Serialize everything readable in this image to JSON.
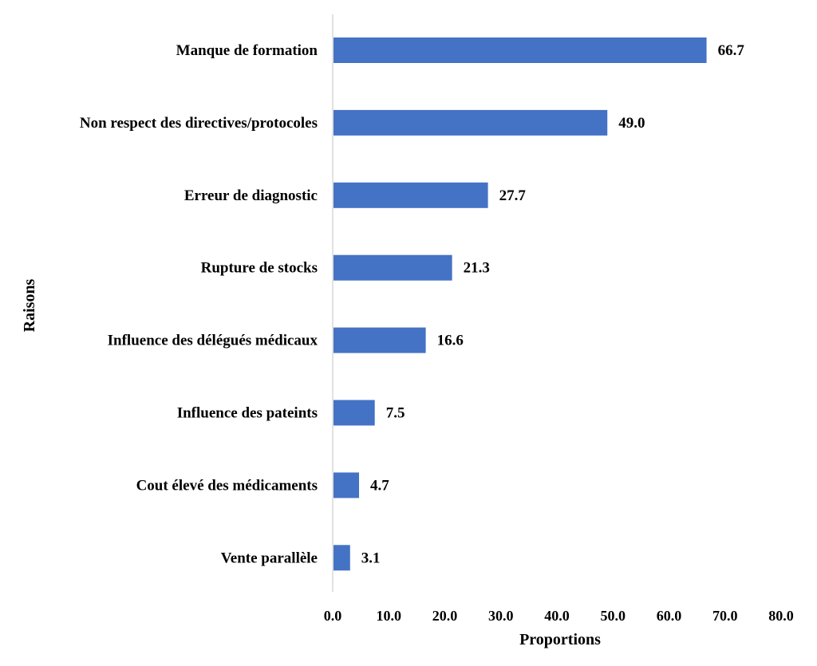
{
  "chart_data": {
    "type": "bar",
    "orientation": "horizontal",
    "categories": [
      "Manque de formation",
      "Non respect des directives/protocoles",
      "Erreur de diagnostic",
      "Rupture de stocks",
      "Influence des délégués médicaux",
      "Influence des pateints",
      "Cout élevé des médicaments",
      "Vente parallèle"
    ],
    "values": [
      66.7,
      49.0,
      27.7,
      21.3,
      16.6,
      7.5,
      4.7,
      3.1
    ],
    "value_labels": [
      "66.7",
      "49.0",
      "27.7",
      "21.3",
      "16.6",
      "7.5",
      "4.7",
      "3.1"
    ],
    "title": "",
    "xlabel": "Proportions",
    "ylabel": "Raisons",
    "xlim": [
      0,
      80
    ],
    "xticks": [
      "0.0",
      "10.0",
      "20.0",
      "30.0",
      "40.0",
      "50.0",
      "60.0",
      "70.0",
      "80.0"
    ],
    "grid": false,
    "legend": "none",
    "bar_color": "#4472C4",
    "axis_color": "#d9d9d9"
  }
}
